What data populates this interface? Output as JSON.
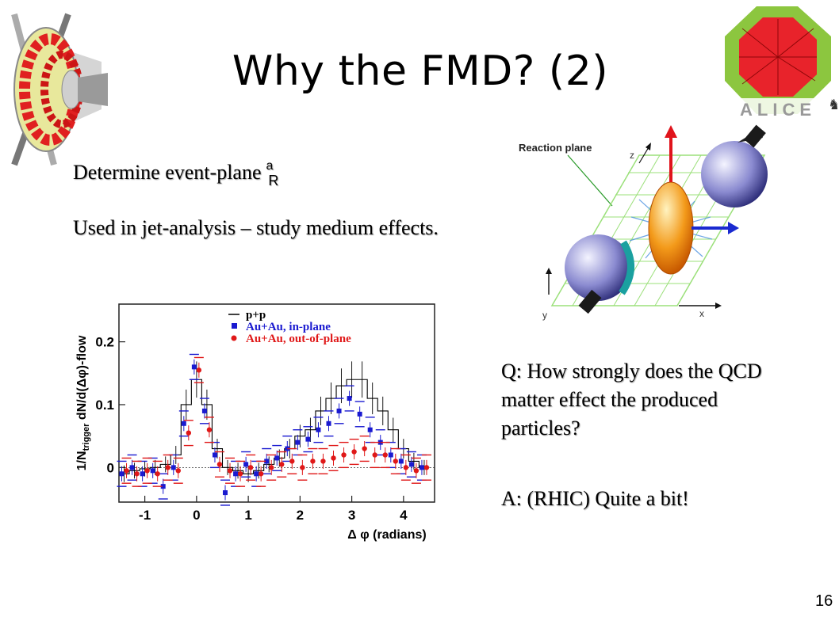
{
  "slide": {
    "title": "Why the FMD? (2)",
    "event_plane_text": "Determine event-plane",
    "event_plane_symbol": "a",
    "event_plane_subscript": "R",
    "jet_text": "Used in jet-analysis – study medium effects.",
    "question": "Q: How strongly does the QCD matter effect the produced particles?",
    "answer": "A: (RHIC) Quite a bit!",
    "page_number": "16",
    "logo_text": "ALICE"
  },
  "diagram": {
    "reaction_plane_label": "Reaction plane",
    "axis_x": "x",
    "axis_y": "y",
    "axis_z": "z"
  },
  "chart_data": {
    "type": "scatter",
    "xlabel": "Δ φ (radians)",
    "ylabel": "1/Ntrigger dN/d(Δφ)-flow",
    "ylabel_parts": {
      "pre": "1/N",
      "sub": "trigger",
      "post": " dN/d(Δφ)-flow"
    },
    "xlim": [
      -1.5,
      4.6
    ],
    "ylim": [
      -0.055,
      0.26
    ],
    "xticks": [
      "-1",
      "0",
      "1",
      "2",
      "3",
      "4"
    ],
    "xtick_values": [
      -1,
      0,
      1,
      2,
      3,
      4
    ],
    "yticks": [
      "0",
      "0.1",
      "0.2"
    ],
    "ytick_values": [
      0,
      0.1,
      0.2
    ],
    "x": [
      -1.4,
      -1.2,
      -1.0,
      -0.8,
      -0.6,
      -0.4,
      -0.2,
      0.0,
      0.2,
      0.4,
      0.6,
      0.8,
      1.0,
      1.2,
      1.4,
      1.6,
      1.8,
      2.0,
      2.2,
      2.4,
      2.6,
      2.8,
      3.0,
      3.2,
      3.4,
      3.6,
      3.8,
      4.0,
      4.2,
      4.4
    ],
    "series": [
      {
        "name": "p+p",
        "color": "#000000",
        "style": "step",
        "values": [
          -0.01,
          -0.005,
          -0.002,
          0.0,
          0.005,
          0.02,
          0.1,
          0.14,
          0.1,
          0.03,
          0.0,
          -0.005,
          -0.01,
          -0.005,
          0.005,
          0.015,
          0.03,
          0.05,
          0.06,
          0.09,
          0.11,
          0.13,
          0.14,
          0.14,
          0.11,
          0.09,
          0.06,
          0.03,
          0.01,
          0.0
        ]
      },
      {
        "name": "Au+Au, in-plane",
        "color": "#1a1ad0",
        "style": "markers",
        "values": [
          -0.01,
          0.0,
          -0.01,
          -0.005,
          -0.03,
          0.0,
          0.07,
          0.16,
          0.09,
          0.02,
          -0.04,
          -0.01,
          0.005,
          -0.01,
          0.01,
          0.015,
          0.03,
          0.04,
          0.045,
          0.06,
          0.07,
          0.09,
          0.11,
          0.085,
          0.06,
          0.04,
          0.02,
          0.01,
          0.005,
          0.0
        ]
      },
      {
        "name": "Au+Au, out-of-plane",
        "color": "#e01818",
        "style": "markers",
        "values": [
          -0.005,
          -0.01,
          -0.005,
          -0.01,
          0.0,
          -0.005,
          0.055,
          0.155,
          0.06,
          0.005,
          -0.005,
          -0.01,
          0.0,
          -0.01,
          0.0,
          0.005,
          0.01,
          0.0,
          0.01,
          0.01,
          0.015,
          0.02,
          0.025,
          0.03,
          0.02,
          0.02,
          0.01,
          0.0,
          -0.005,
          0.0
        ]
      }
    ]
  }
}
